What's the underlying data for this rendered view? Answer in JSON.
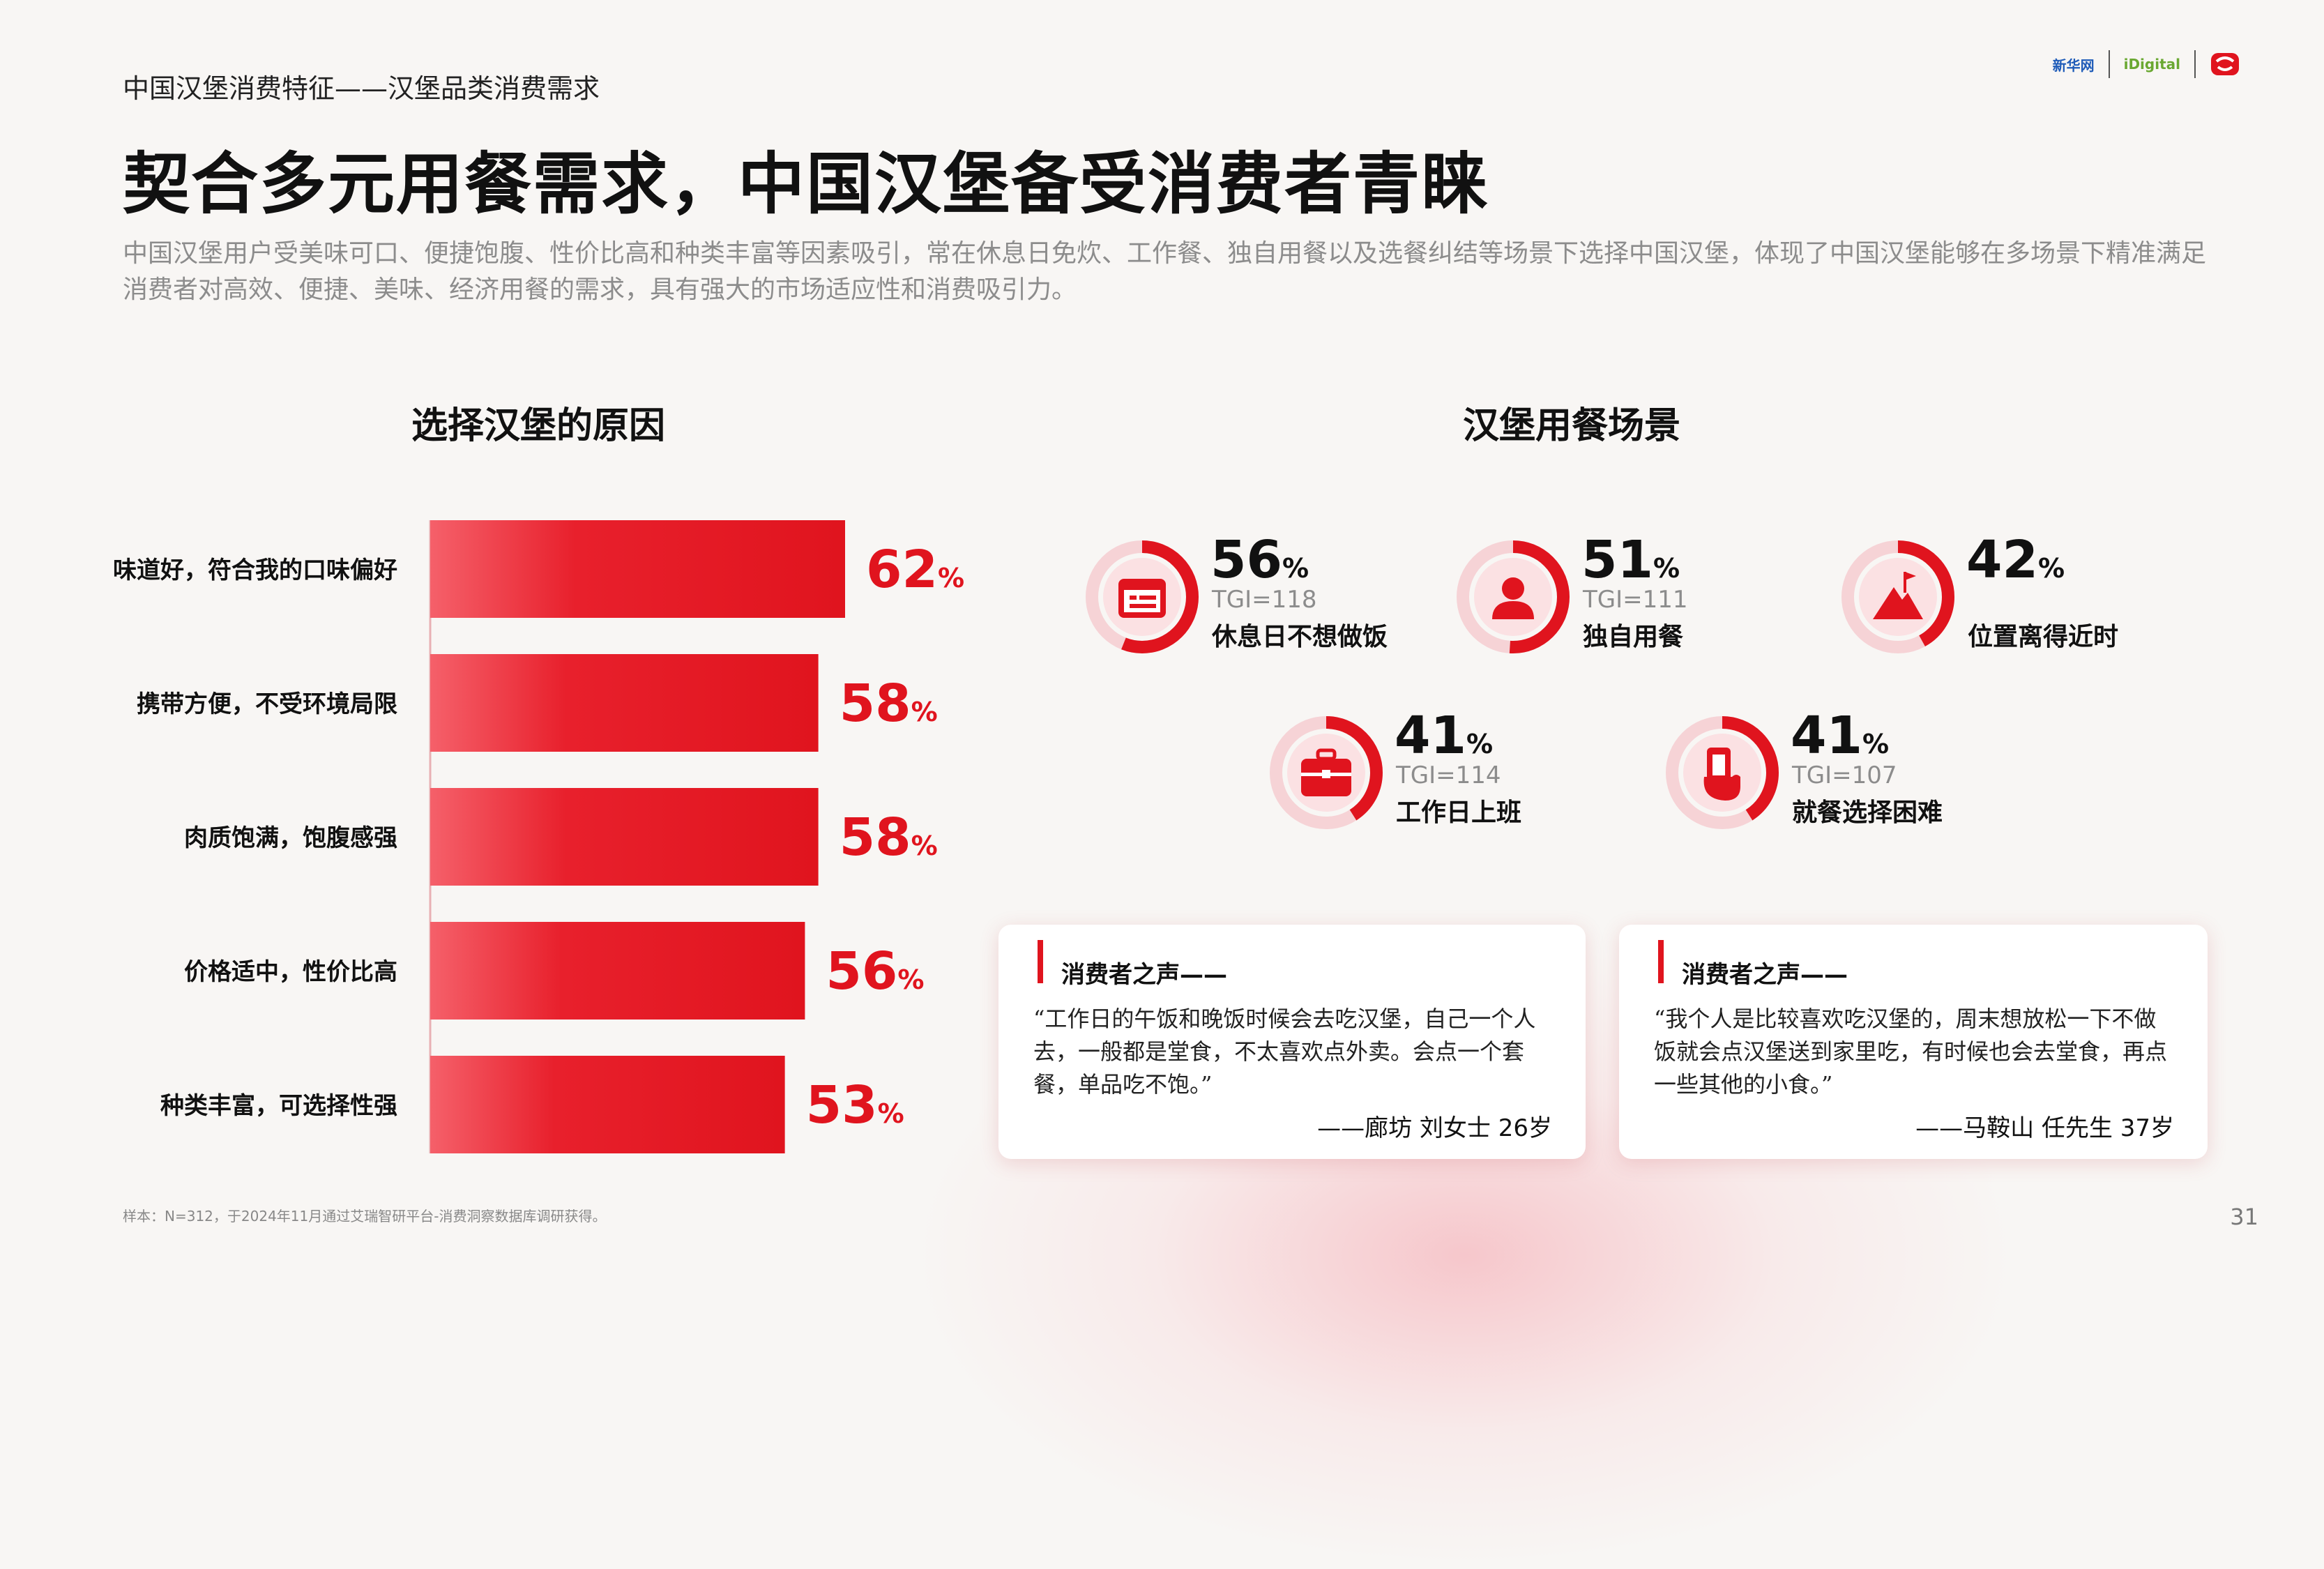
{
  "header": {
    "breadcrumb": "中国汉堡消费特征——汉堡品类消费需求",
    "title": "契合多元用餐需求，中国汉堡备受消费者青睐",
    "subtitle": "中国汉堡用户受美味可口、便捷饱腹、性价比高和种类丰富等因素吸引，常在休息日免炊、工作餐、独自用餐以及选餐纠结等场景下选择中国汉堡，体现了中国汉堡能够在多场景下精准满足消费者对高效、便捷、美味、经济用餐的需求，具有强大的市场适应性和消费吸引力。"
  },
  "logos": {
    "logo1": "新华网",
    "logo2": "iDigital",
    "logo3_icon": "brand-mark-icon"
  },
  "left_section_title": "选择汉堡的原因",
  "right_section_title": "汉堡用餐场景",
  "chart_data": {
    "type": "bar",
    "orientation": "horizontal",
    "categories": [
      "味道好，符合我的口味偏好",
      "携带方便，不受环境局限",
      "肉质饱满，饱腹感强",
      "价格适中，性价比高",
      "种类丰富，可选择性强"
    ],
    "values": [
      62,
      58,
      58,
      56,
      53
    ],
    "unit": "%",
    "xlim": [
      0,
      100
    ],
    "bar_color": "#e0141e"
  },
  "scenes": [
    {
      "pct": "56",
      "tgi": "TGI=118",
      "label": "休息日不想做饭",
      "value": 56,
      "icon": "calendar-icon"
    },
    {
      "pct": "51",
      "tgi": "TGI=111",
      "label": "独自用餐",
      "value": 51,
      "icon": "person-icon"
    },
    {
      "pct": "42",
      "tgi": "",
      "label": "位置离得近时",
      "value": 42,
      "icon": "mountain-flag-icon"
    },
    {
      "pct": "41",
      "tgi": "TGI=114",
      "label": "工作日上班",
      "value": 41,
      "icon": "briefcase-icon"
    },
    {
      "pct": "41",
      "tgi": "TGI=107",
      "label": "就餐选择困难",
      "value": 41,
      "icon": "hand-phone-icon"
    }
  ],
  "pct_unit": "%",
  "quotes": [
    {
      "heading": "消费者之声——",
      "text": "“工作日的午饭和晚饭时候会去吃汉堡，自己一个人去，一般都是堂食，不太喜欢点外卖。会点一个套餐，单品吃不饱。”",
      "author": "——廊坊 刘女士 26岁"
    },
    {
      "heading": "消费者之声——",
      "text": "“我个人是比较喜欢吃汉堡的，周末想放松一下不做饭就会点汉堡送到家里吃，有时候也会去堂食，再点一些其他的小食。”",
      "author": "——马鞍山 任先生 37岁"
    }
  ],
  "footnote": "样本：N=312，于2024年11月通过艾瑞智研平台-消费洞察数据库调研获得。",
  "page_number": "31",
  "colors": {
    "accent": "#e0141e",
    "ring_track": "#f6d3d6",
    "icon_bg": "#fbe1e3"
  }
}
